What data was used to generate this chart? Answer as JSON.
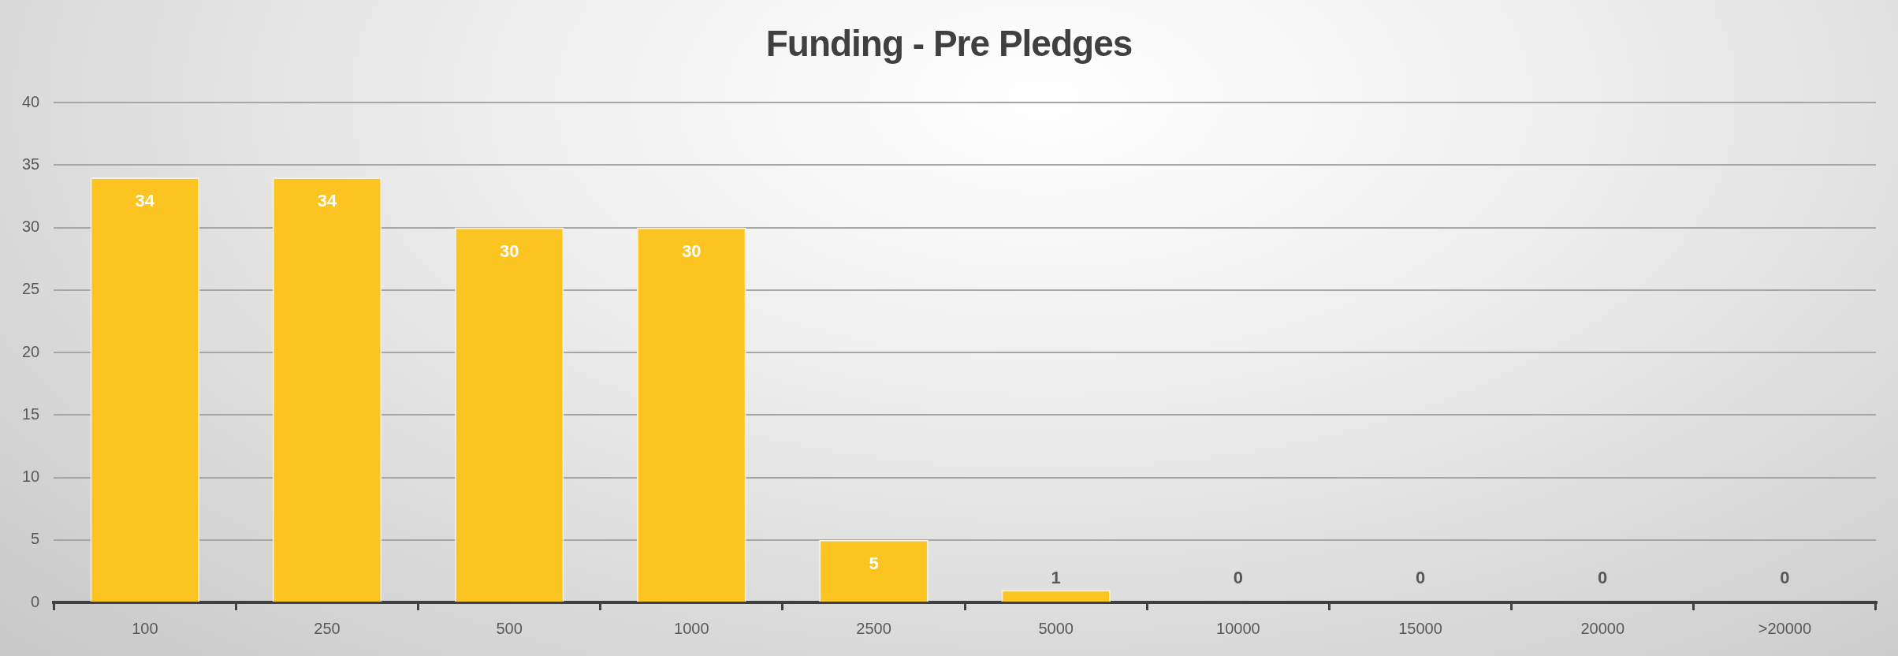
{
  "chart_data": {
    "type": "bar",
    "title": "Funding - Pre Pledges",
    "categories": [
      "100",
      "250",
      "500",
      "1000",
      "2500",
      "5000",
      "10000",
      "15000",
      "20000",
      ">20000"
    ],
    "values": [
      34,
      34,
      30,
      30,
      5,
      1,
      0,
      0,
      0,
      0
    ],
    "color": "#fcc420",
    "ylim": [
      0,
      40
    ],
    "yticks": [
      0,
      5,
      10,
      15,
      20,
      25,
      30,
      35,
      40
    ],
    "grid": "y",
    "data_labels": true
  }
}
